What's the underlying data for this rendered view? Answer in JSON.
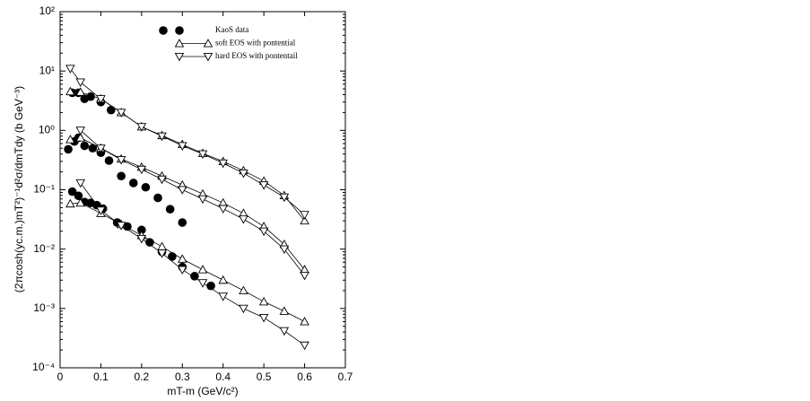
{
  "chart_data": {
    "type": "scatter-line",
    "xlabel": "mT-m (GeV/c²)",
    "ylabel": "(2πcosh(yc.m.)mT²)⁻¹d²σ/dmTdy (b GeV⁻³)",
    "xlim": [
      0,
      0.7
    ],
    "xticks": [
      0,
      0.1,
      0.2,
      0.3,
      0.4,
      0.5,
      0.6,
      0.7
    ],
    "ylim": [
      0.0001,
      100
    ],
    "yscale": "log",
    "yticks": [
      {
        "value": 0.0001,
        "label": "10⁻⁴"
      },
      {
        "value": 0.001,
        "label": "10⁻³"
      },
      {
        "value": 0.01,
        "label": "10⁻²"
      },
      {
        "value": 0.1,
        "label": "10⁻¹"
      },
      {
        "value": 1,
        "label": "10⁰"
      },
      {
        "value": 10,
        "label": "10¹"
      },
      {
        "value": 100,
        "label": "10²"
      }
    ],
    "series": [
      {
        "name": "KaoS data",
        "marker": "circle",
        "line": false,
        "color": "#000000",
        "groups": [
          {
            "x": [
              0.03,
              0.045,
              0.06,
              0.075,
              0.1,
              0.125
            ],
            "values": [
              4.3,
              4.3,
              3.4,
              3.7,
              3.0,
              2.2
            ]
          },
          {
            "x": [
              0.02,
              0.035,
              0.045,
              0.06,
              0.08,
              0.1,
              0.12,
              0.15,
              0.18,
              0.21,
              0.24,
              0.27,
              0.3
            ],
            "values": [
              0.48,
              0.65,
              0.75,
              0.55,
              0.5,
              0.42,
              0.31,
              0.17,
              0.13,
              0.11,
              0.073,
              0.047,
              0.028
            ]
          },
          {
            "x": [
              0.03,
              0.045,
              0.06,
              0.075,
              0.09,
              0.105,
              0.14,
              0.165,
              0.2,
              0.22,
              0.25,
              0.275,
              0.3,
              0.33,
              0.37
            ],
            "values": [
              0.093,
              0.079,
              0.062,
              0.06,
              0.055,
              0.048,
              0.028,
              0.024,
              0.021,
              0.013,
              0.009,
              0.0075,
              0.005,
              0.0035,
              0.0024
            ]
          }
        ]
      },
      {
        "name": "soft EOS with pontential",
        "marker": "triangle-up",
        "line": true,
        "color": "#000000",
        "groups": [
          {
            "x": [
              0.025,
              0.05,
              0.1,
              0.15,
              0.2,
              0.25,
              0.3,
              0.35,
              0.4,
              0.45,
              0.5,
              0.55,
              0.6
            ],
            "values": [
              4.5,
              4.4,
              3.4,
              2.0,
              1.15,
              0.82,
              0.58,
              0.41,
              0.3,
              0.21,
              0.14,
              0.08,
              0.03
            ]
          },
          {
            "x": [
              0.025,
              0.05,
              0.1,
              0.15,
              0.2,
              0.25,
              0.3,
              0.35,
              0.4,
              0.45,
              0.5,
              0.55,
              0.6
            ],
            "values": [
              0.7,
              0.75,
              0.5,
              0.33,
              0.24,
              0.17,
              0.12,
              0.085,
              0.06,
              0.04,
              0.024,
              0.012,
              0.0045
            ]
          },
          {
            "x": [
              0.025,
              0.05,
              0.1,
              0.15,
              0.2,
              0.25,
              0.3,
              0.35,
              0.4,
              0.45,
              0.5,
              0.55,
              0.6
            ],
            "values": [
              0.058,
              0.06,
              0.04,
              0.026,
              0.017,
              0.011,
              0.0068,
              0.0045,
              0.003,
              0.002,
              0.0013,
              0.0009,
              0.0006
            ]
          }
        ]
      },
      {
        "name": "hard EOS with pontentail",
        "marker": "triangle-down",
        "line": true,
        "color": "#000000",
        "groups": [
          {
            "x": [
              0.025,
              0.05,
              0.1,
              0.15,
              0.2,
              0.25,
              0.3,
              0.35,
              0.4,
              0.45,
              0.5,
              0.55,
              0.6
            ],
            "values": [
              11,
              6.5,
              3.4,
              2.0,
              1.15,
              0.8,
              0.55,
              0.4,
              0.28,
              0.19,
              0.12,
              0.075,
              0.038
            ]
          },
          {
            "x": [
              0.025,
              0.05,
              0.1,
              0.15,
              0.2,
              0.25,
              0.3,
              0.35,
              0.4,
              0.45,
              0.5,
              0.55,
              0.6
            ],
            "values": [
              null,
              1.0,
              0.5,
              0.32,
              0.22,
              0.15,
              0.1,
              0.07,
              0.048,
              0.032,
              0.02,
              0.01,
              0.0036
            ]
          },
          {
            "x": [
              0.025,
              0.05,
              0.1,
              0.15,
              0.2,
              0.25,
              0.3,
              0.35,
              0.4,
              0.45,
              0.5,
              0.55,
              0.6
            ],
            "values": [
              null,
              0.13,
              0.045,
              0.025,
              0.015,
              0.0085,
              0.0045,
              0.0027,
              0.0016,
              0.001,
              0.0007,
              0.00042,
              0.00024
            ]
          }
        ]
      }
    ]
  }
}
